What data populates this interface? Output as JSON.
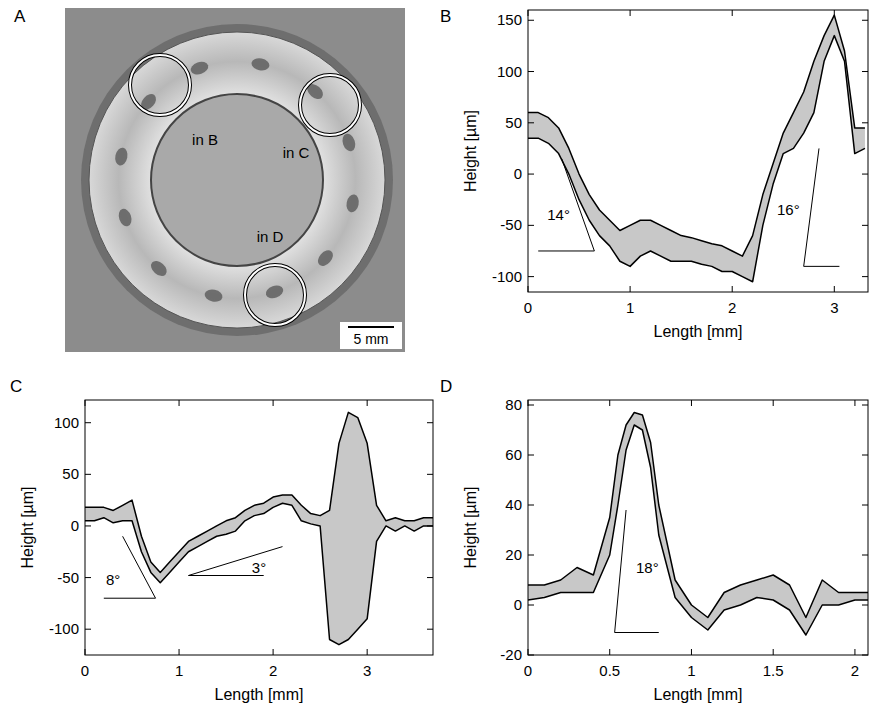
{
  "photo": {
    "title": "A",
    "labels": [
      "in B",
      "in C",
      "in D"
    ],
    "scale_bar": "5 mm"
  },
  "chart_data": [
    {
      "type": "band",
      "title": "B",
      "x_label": "Length [mm]",
      "y_label": "Height [µm]",
      "color": "#c8c8c8",
      "xlim": [
        0,
        3.33
      ],
      "xticks": [
        0,
        1,
        2,
        3
      ],
      "ylim": [
        -115,
        160
      ],
      "yticks": [
        -100,
        -50,
        0,
        50,
        100,
        150
      ],
      "x": [
        0,
        0.1,
        0.2,
        0.3,
        0.4,
        0.5,
        0.6,
        0.7,
        0.8,
        0.9,
        1.0,
        1.1,
        1.2,
        1.3,
        1.4,
        1.5,
        1.6,
        1.7,
        1.8,
        1.9,
        2.0,
        2.1,
        2.2,
        2.3,
        2.4,
        2.5,
        2.6,
        2.7,
        2.8,
        2.9,
        3.0,
        3.1,
        3.2,
        3.3
      ],
      "series": [
        {
          "color": "#000000",
          "values": [
            60,
            60,
            55,
            45,
            25,
            0,
            -20,
            -35,
            -45,
            -55,
            -50,
            -45,
            -45,
            -50,
            -55,
            -60,
            -62,
            -65,
            -68,
            -70,
            -75,
            -80,
            -60,
            -20,
            10,
            40,
            60,
            80,
            110,
            135,
            155,
            120,
            45,
            45
          ]
        },
        {
          "color": "#000000",
          "values": [
            35,
            35,
            30,
            20,
            0,
            -25,
            -45,
            -60,
            -70,
            -85,
            -90,
            -80,
            -75,
            -80,
            -85,
            -85,
            -85,
            -88,
            -90,
            -95,
            -95,
            -100,
            -105,
            -50,
            -10,
            20,
            25,
            40,
            60,
            110,
            135,
            110,
            20,
            25
          ]
        }
      ],
      "annotations": [
        {
          "text": "14°",
          "x": 0.3,
          "y": -45,
          "line_x": [
            0.33,
            0.65,
            0.1
          ],
          "line_y": [
            15,
            -75,
            -75
          ]
        },
        {
          "text": "16°",
          "x": 2.55,
          "y": -40,
          "line_x": [
            2.85,
            2.7,
            3.05
          ],
          "line_y": [
            25,
            -90,
            -90
          ]
        }
      ]
    },
    {
      "type": "band",
      "title": "C",
      "x_label": "Length [mm]",
      "y_label": "Height [µm]",
      "color": "#c8c8c8",
      "xlim": [
        0,
        3.7
      ],
      "xticks": [
        0,
        1,
        2,
        3
      ],
      "ylim": [
        -125,
        122
      ],
      "yticks": [
        -100,
        -50,
        0,
        50,
        100
      ],
      "x": [
        0,
        0.1,
        0.2,
        0.3,
        0.4,
        0.5,
        0.6,
        0.7,
        0.8,
        0.9,
        1.0,
        1.1,
        1.2,
        1.3,
        1.4,
        1.5,
        1.6,
        1.7,
        1.8,
        1.9,
        2.0,
        2.1,
        2.2,
        2.3,
        2.4,
        2.5,
        2.6,
        2.7,
        2.8,
        2.9,
        3.0,
        3.1,
        3.2,
        3.3,
        3.4,
        3.5,
        3.6,
        3.7
      ],
      "series": [
        {
          "color": "#000000",
          "values": [
            18,
            18,
            18,
            15,
            20,
            25,
            -10,
            -35,
            -45,
            -35,
            -25,
            -15,
            -10,
            -5,
            0,
            5,
            8,
            15,
            20,
            22,
            28,
            30,
            30,
            20,
            12,
            10,
            15,
            80,
            110,
            105,
            80,
            20,
            5,
            8,
            5,
            5,
            8,
            8
          ]
        },
        {
          "color": "#000000",
          "values": [
            5,
            5,
            8,
            3,
            5,
            5,
            -25,
            -45,
            -55,
            -45,
            -35,
            -25,
            -20,
            -15,
            -10,
            -8,
            -5,
            5,
            10,
            12,
            18,
            22,
            20,
            5,
            2,
            0,
            -110,
            -115,
            -110,
            -100,
            -90,
            -15,
            0,
            -5,
            0,
            -5,
            0,
            0
          ]
        }
      ],
      "annotations": [
        {
          "text": "8°",
          "x": 0.3,
          "y": -57,
          "line_x": [
            0.4,
            0.75,
            0.2
          ],
          "line_y": [
            -10,
            -70,
            -70
          ]
        },
        {
          "text": "3°",
          "x": 1.85,
          "y": -46,
          "line_x": [
            2.1,
            1.1,
            1.9
          ],
          "line_y": [
            -20,
            -48,
            -48
          ]
        }
      ]
    },
    {
      "type": "band",
      "title": "D",
      "x_label": "Length [mm]",
      "y_label": "Height [µm]",
      "color": "#c8c8c8",
      "xlim": [
        0,
        2.08
      ],
      "xticks": [
        0,
        0.5,
        1,
        1.5,
        2
      ],
      "ylim": [
        -20,
        82
      ],
      "yticks": [
        -20,
        0,
        20,
        40,
        60,
        80
      ],
      "x": [
        0,
        0.1,
        0.2,
        0.3,
        0.4,
        0.5,
        0.55,
        0.6,
        0.65,
        0.7,
        0.75,
        0.8,
        0.9,
        1.0,
        1.1,
        1.2,
        1.3,
        1.4,
        1.5,
        1.6,
        1.7,
        1.8,
        1.9,
        2.0,
        2.08
      ],
      "series": [
        {
          "color": "#000000",
          "values": [
            8,
            8,
            10,
            15,
            12,
            35,
            60,
            72,
            77,
            76,
            65,
            40,
            10,
            0,
            -5,
            5,
            8,
            10,
            12,
            8,
            -5,
            10,
            5,
            5,
            5
          ]
        },
        {
          "color": "#000000",
          "values": [
            2,
            3,
            5,
            5,
            5,
            20,
            40,
            62,
            72,
            70,
            55,
            28,
            3,
            -5,
            -10,
            -2,
            0,
            3,
            2,
            -2,
            -12,
            0,
            0,
            2,
            2
          ]
        }
      ],
      "annotations": [
        {
          "text": "18°",
          "x": 0.73,
          "y": 13,
          "line_x": [
            0.6,
            0.53,
            0.8
          ],
          "line_y": [
            38,
            -11,
            -11
          ]
        }
      ]
    }
  ]
}
